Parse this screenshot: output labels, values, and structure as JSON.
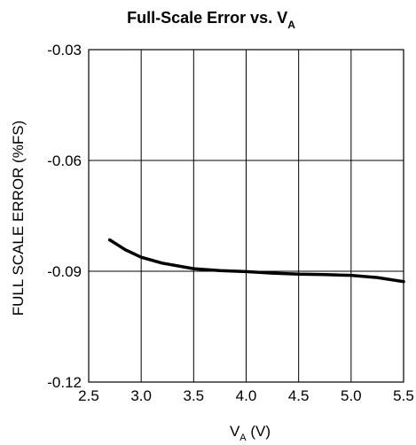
{
  "chart_data": {
    "type": "line",
    "title": {
      "main": "Full-Scale Error vs. V",
      "sub": "A"
    },
    "xlabel": {
      "main": "V",
      "sub": "A",
      "suffix": " (V)"
    },
    "ylabel": "FULL SCALE ERROR (%FS)",
    "xlim": [
      2.5,
      5.5
    ],
    "ylim": [
      -0.12,
      -0.03
    ],
    "x_ticks": [
      2.5,
      3.0,
      3.5,
      4.0,
      4.5,
      5.0,
      5.5
    ],
    "x_tick_labels": [
      "2.5",
      "3.0",
      "3.5",
      "4.0",
      "4.5",
      "5.0",
      "5.5"
    ],
    "y_ticks": [
      -0.03,
      -0.06,
      -0.09,
      -0.12
    ],
    "y_tick_labels": [
      "-0.03",
      "-0.06",
      "-0.09",
      "-0.12"
    ],
    "grid": true,
    "series": [
      {
        "color": "#000000",
        "x": [
          2.7,
          2.85,
          3.0,
          3.2,
          3.5,
          3.75,
          4.0,
          4.25,
          4.5,
          4.75,
          5.0,
          5.25,
          5.5
        ],
        "y": [
          -0.0815,
          -0.0842,
          -0.0862,
          -0.0878,
          -0.0893,
          -0.0898,
          -0.0901,
          -0.0905,
          -0.0908,
          -0.0909,
          -0.0911,
          -0.0917,
          -0.0928
        ]
      }
    ]
  }
}
